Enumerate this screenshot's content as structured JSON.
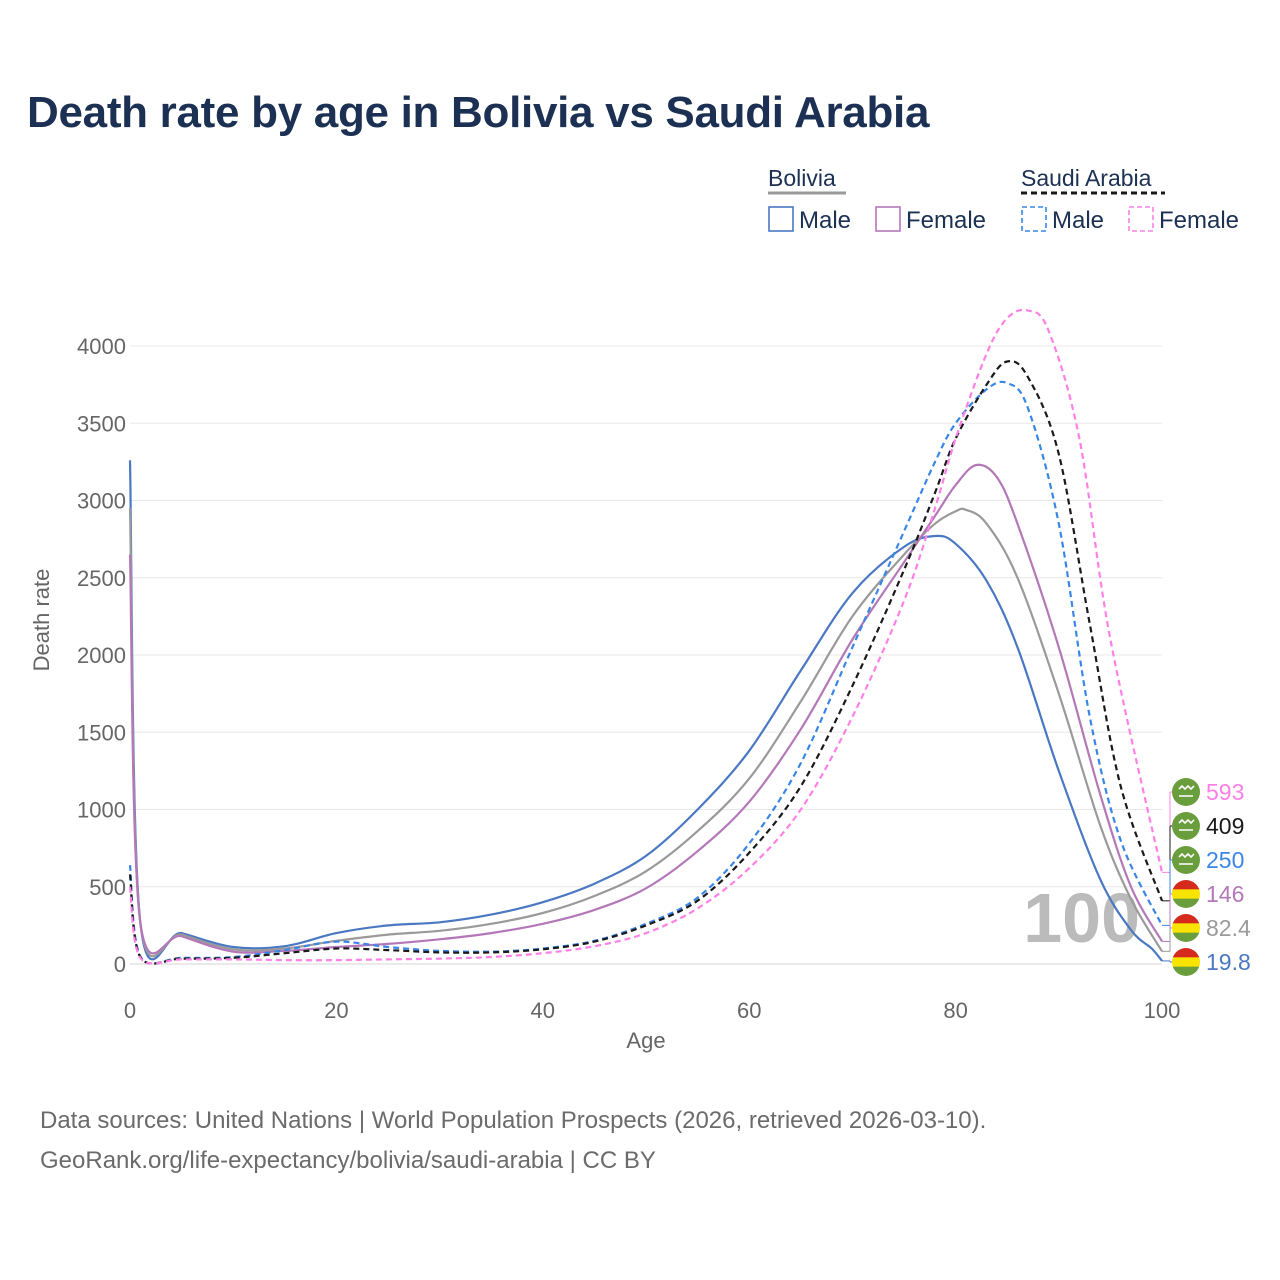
{
  "chart_data": {
    "type": "line",
    "title": "Death rate by age in Bolivia vs Saudi Arabia",
    "xlabel": "Age",
    "ylabel": "Death rate",
    "xlim": [
      0,
      100
    ],
    "ylim": [
      0,
      4300
    ],
    "x_ticks": [
      0,
      20,
      40,
      60,
      80,
      100
    ],
    "y_ticks": [
      0,
      500,
      1000,
      1500,
      2000,
      2500,
      3000,
      3500,
      4000
    ],
    "grid": true,
    "legend_position": "top-right",
    "legend": {
      "groups": [
        {
          "label": "Bolivia",
          "items": [
            "Male",
            "Female"
          ]
        },
        {
          "label": "Saudi Arabia",
          "items": [
            "Male",
            "Female"
          ]
        }
      ]
    },
    "age_marker": "100",
    "series": [
      {
        "name": "Bolivia Male",
        "country": "Bolivia",
        "sex": "Male",
        "color": "#4a78c2",
        "dashed": false,
        "end_value": "19.8",
        "points": [
          [
            0,
            3260
          ],
          [
            1,
            270
          ],
          [
            5,
            200
          ],
          [
            10,
            110
          ],
          [
            15,
            115
          ],
          [
            20,
            200
          ],
          [
            25,
            250
          ],
          [
            30,
            270
          ],
          [
            35,
            320
          ],
          [
            40,
            400
          ],
          [
            45,
            520
          ],
          [
            50,
            700
          ],
          [
            55,
            1000
          ],
          [
            60,
            1380
          ],
          [
            65,
            1900
          ],
          [
            70,
            2400
          ],
          [
            75,
            2700
          ],
          [
            78,
            2770
          ],
          [
            80,
            2720
          ],
          [
            83,
            2480
          ],
          [
            86,
            2050
          ],
          [
            90,
            1250
          ],
          [
            94,
            550
          ],
          [
            97,
            220
          ],
          [
            99,
            100
          ],
          [
            100,
            20
          ]
        ]
      },
      {
        "name": "Bolivia Total",
        "country": "Bolivia",
        "sex": "Both",
        "color": "#9a9a9a",
        "dashed": false,
        "end_value": "82.4",
        "points": [
          [
            0,
            2950
          ],
          [
            1,
            270
          ],
          [
            5,
            190
          ],
          [
            10,
            95
          ],
          [
            15,
            100
          ],
          [
            20,
            150
          ],
          [
            25,
            190
          ],
          [
            30,
            215
          ],
          [
            35,
            260
          ],
          [
            40,
            330
          ],
          [
            45,
            440
          ],
          [
            50,
            600
          ],
          [
            55,
            860
          ],
          [
            60,
            1200
          ],
          [
            65,
            1700
          ],
          [
            70,
            2250
          ],
          [
            75,
            2650
          ],
          [
            78,
            2850
          ],
          [
            80,
            2930
          ],
          [
            81,
            2940
          ],
          [
            83,
            2850
          ],
          [
            86,
            2500
          ],
          [
            90,
            1750
          ],
          [
            94,
            900
          ],
          [
            97,
            420
          ],
          [
            100,
            82
          ]
        ]
      },
      {
        "name": "Bolivia Female",
        "country": "Bolivia",
        "sex": "Female",
        "color": "#b478b8",
        "dashed": false,
        "end_value": "146",
        "points": [
          [
            0,
            2650
          ],
          [
            1,
            270
          ],
          [
            5,
            180
          ],
          [
            10,
            80
          ],
          [
            15,
            85
          ],
          [
            20,
            110
          ],
          [
            25,
            130
          ],
          [
            30,
            160
          ],
          [
            35,
            200
          ],
          [
            40,
            260
          ],
          [
            45,
            350
          ],
          [
            50,
            490
          ],
          [
            55,
            730
          ],
          [
            60,
            1050
          ],
          [
            65,
            1520
          ],
          [
            70,
            2100
          ],
          [
            75,
            2600
          ],
          [
            78,
            2900
          ],
          [
            80,
            3100
          ],
          [
            82,
            3230
          ],
          [
            84,
            3150
          ],
          [
            86,
            2850
          ],
          [
            90,
            2050
          ],
          [
            94,
            1100
          ],
          [
            97,
            500
          ],
          [
            100,
            146
          ]
        ]
      },
      {
        "name": "Saudi Arabia Male",
        "country": "Saudi Arabia",
        "sex": "Male",
        "color": "#3a86e6",
        "dashed": true,
        "end_value": "250",
        "points": [
          [
            0,
            640
          ],
          [
            1,
            50
          ],
          [
            5,
            40
          ],
          [
            10,
            45
          ],
          [
            15,
            90
          ],
          [
            20,
            145
          ],
          [
            25,
            110
          ],
          [
            30,
            85
          ],
          [
            35,
            80
          ],
          [
            40,
            100
          ],
          [
            45,
            150
          ],
          [
            50,
            260
          ],
          [
            55,
            430
          ],
          [
            60,
            780
          ],
          [
            65,
            1300
          ],
          [
            70,
            2050
          ],
          [
            75,
            2800
          ],
          [
            78,
            3250
          ],
          [
            80,
            3500
          ],
          [
            83,
            3720
          ],
          [
            85,
            3760
          ],
          [
            87,
            3600
          ],
          [
            90,
            2850
          ],
          [
            93,
            1600
          ],
          [
            96,
            800
          ],
          [
            100,
            250
          ]
        ]
      },
      {
        "name": "Saudi Arabia Total",
        "country": "Saudi Arabia",
        "sex": "Both",
        "color": "#1a1a1a",
        "dashed": true,
        "end_value": "409",
        "points": [
          [
            0,
            580
          ],
          [
            1,
            45
          ],
          [
            5,
            35
          ],
          [
            10,
            40
          ],
          [
            15,
            70
          ],
          [
            20,
            100
          ],
          [
            25,
            90
          ],
          [
            30,
            75
          ],
          [
            35,
            75
          ],
          [
            40,
            95
          ],
          [
            45,
            145
          ],
          [
            50,
            250
          ],
          [
            55,
            410
          ],
          [
            60,
            720
          ],
          [
            65,
            1150
          ],
          [
            70,
            1800
          ],
          [
            75,
            2550
          ],
          [
            78,
            3050
          ],
          [
            80,
            3400
          ],
          [
            83,
            3750
          ],
          [
            85,
            3900
          ],
          [
            87,
            3800
          ],
          [
            90,
            3300
          ],
          [
            93,
            2200
          ],
          [
            96,
            1150
          ],
          [
            100,
            409
          ]
        ]
      },
      {
        "name": "Saudi Arabia Female",
        "country": "Saudi Arabia",
        "sex": "Female",
        "color": "#ff80e6",
        "dashed": true,
        "end_value": "593",
        "points": [
          [
            0,
            500
          ],
          [
            1,
            40
          ],
          [
            5,
            30
          ],
          [
            10,
            30
          ],
          [
            15,
            25
          ],
          [
            20,
            25
          ],
          [
            25,
            30
          ],
          [
            30,
            35
          ],
          [
            35,
            45
          ],
          [
            40,
            70
          ],
          [
            45,
            115
          ],
          [
            50,
            200
          ],
          [
            55,
            360
          ],
          [
            60,
            620
          ],
          [
            65,
            1000
          ],
          [
            70,
            1600
          ],
          [
            75,
            2350
          ],
          [
            78,
            2950
          ],
          [
            80,
            3400
          ],
          [
            83,
            3950
          ],
          [
            85,
            4180
          ],
          [
            87,
            4230
          ],
          [
            89,
            4100
          ],
          [
            92,
            3400
          ],
          [
            95,
            2100
          ],
          [
            100,
            593
          ]
        ]
      }
    ]
  },
  "footer": {
    "source": "Data sources: United Nations | World Population Prospects (2026, retrieved 2026-03-10).",
    "url": "GeoRank.org/life-expectancy/bolivia/saudi-arabia | CC BY"
  }
}
